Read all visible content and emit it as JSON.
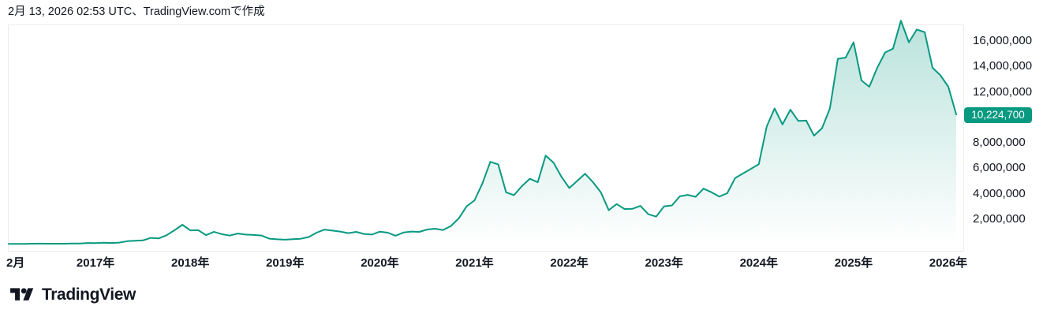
{
  "header": {
    "caption": "2月 13, 2026 02:53 UTC、TradingView.comで作成"
  },
  "footer": {
    "brand_name": "TradingView"
  },
  "colors": {
    "accent": "#089981",
    "text": "#131722",
    "plot_border": "#ececee",
    "badge_text": "#ffffff",
    "background": "#ffffff"
  },
  "chart_data": {
    "type": "area",
    "title": "",
    "frequency": "monthly",
    "x_range": {
      "start": "2016-02",
      "end": "2026-02"
    },
    "ylim": [
      0,
      17300000
    ],
    "grid": false,
    "legend": false,
    "y_axis_side": "right",
    "line_color": "#089981",
    "fill": "teal gradient fading to transparent toward bottom",
    "last_price": 10224700,
    "last_price_label": "10,224,700",
    "values": [
      50000,
      47000,
      48000,
      59000,
      68000,
      64000,
      59000,
      62000,
      72000,
      77000,
      115000,
      112000,
      135000,
      120000,
      150000,
      260000,
      290000,
      320000,
      520000,
      480000,
      730000,
      1120000,
      1550000,
      1110000,
      1130000,
      740000,
      1000000,
      810000,
      700000,
      860000,
      780000,
      750000,
      710000,
      460000,
      410000,
      380000,
      420000,
      450000,
      590000,
      930000,
      1170000,
      1090000,
      1020000,
      890000,
      990000,
      830000,
      780000,
      1010000,
      930000,
      690000,
      940000,
      1020000,
      990000,
      1180000,
      1240000,
      1140000,
      1450000,
      2050000,
      3000000,
      3470000,
      4810000,
      6500000,
      6300000,
      4100000,
      3880000,
      4590000,
      5170000,
      4890000,
      6990000,
      6440000,
      5330000,
      4440000,
      5000000,
      5560000,
      4900000,
      4100000,
      2700000,
      3180000,
      2790000,
      2810000,
      3030000,
      2380000,
      2190000,
      3000000,
      3070000,
      3790000,
      3900000,
      3750000,
      4390000,
      4110000,
      3770000,
      4030000,
      5230000,
      5590000,
      5950000,
      6320000,
      9280000,
      10700000,
      9440000,
      10600000,
      9720000,
      9740000,
      8560000,
      9140000,
      10700000,
      14600000,
      14700000,
      15900000,
      12900000,
      12400000,
      13900000,
      15100000,
      15400000,
      17600000,
      15900000,
      16900000,
      16700000,
      13900000,
      13300000,
      12400000,
      10224700
    ],
    "y_ticks": [
      {
        "label": "16,000,000",
        "value": 16000000
      },
      {
        "label": "14,000,000",
        "value": 14000000
      },
      {
        "label": "12,000,000",
        "value": 12000000
      },
      {
        "label": "8,000,000",
        "value": 8000000
      },
      {
        "label": "6,000,000",
        "value": 6000000
      },
      {
        "label": "4,000,000",
        "value": 4000000
      },
      {
        "label": "2,000,000",
        "value": 2000000
      }
    ],
    "x_ticks": [
      {
        "label": "2月",
        "month_index": 0
      },
      {
        "label": "2017年",
        "month_index": 11
      },
      {
        "label": "2018年",
        "month_index": 23
      },
      {
        "label": "2019年",
        "month_index": 35
      },
      {
        "label": "2020年",
        "month_index": 47
      },
      {
        "label": "2021年",
        "month_index": 59
      },
      {
        "label": "2022年",
        "month_index": 71
      },
      {
        "label": "2023年",
        "month_index": 83
      },
      {
        "label": "2024年",
        "month_index": 95
      },
      {
        "label": "2025年",
        "month_index": 107
      },
      {
        "label": "2026年",
        "month_index": 119
      }
    ]
  }
}
